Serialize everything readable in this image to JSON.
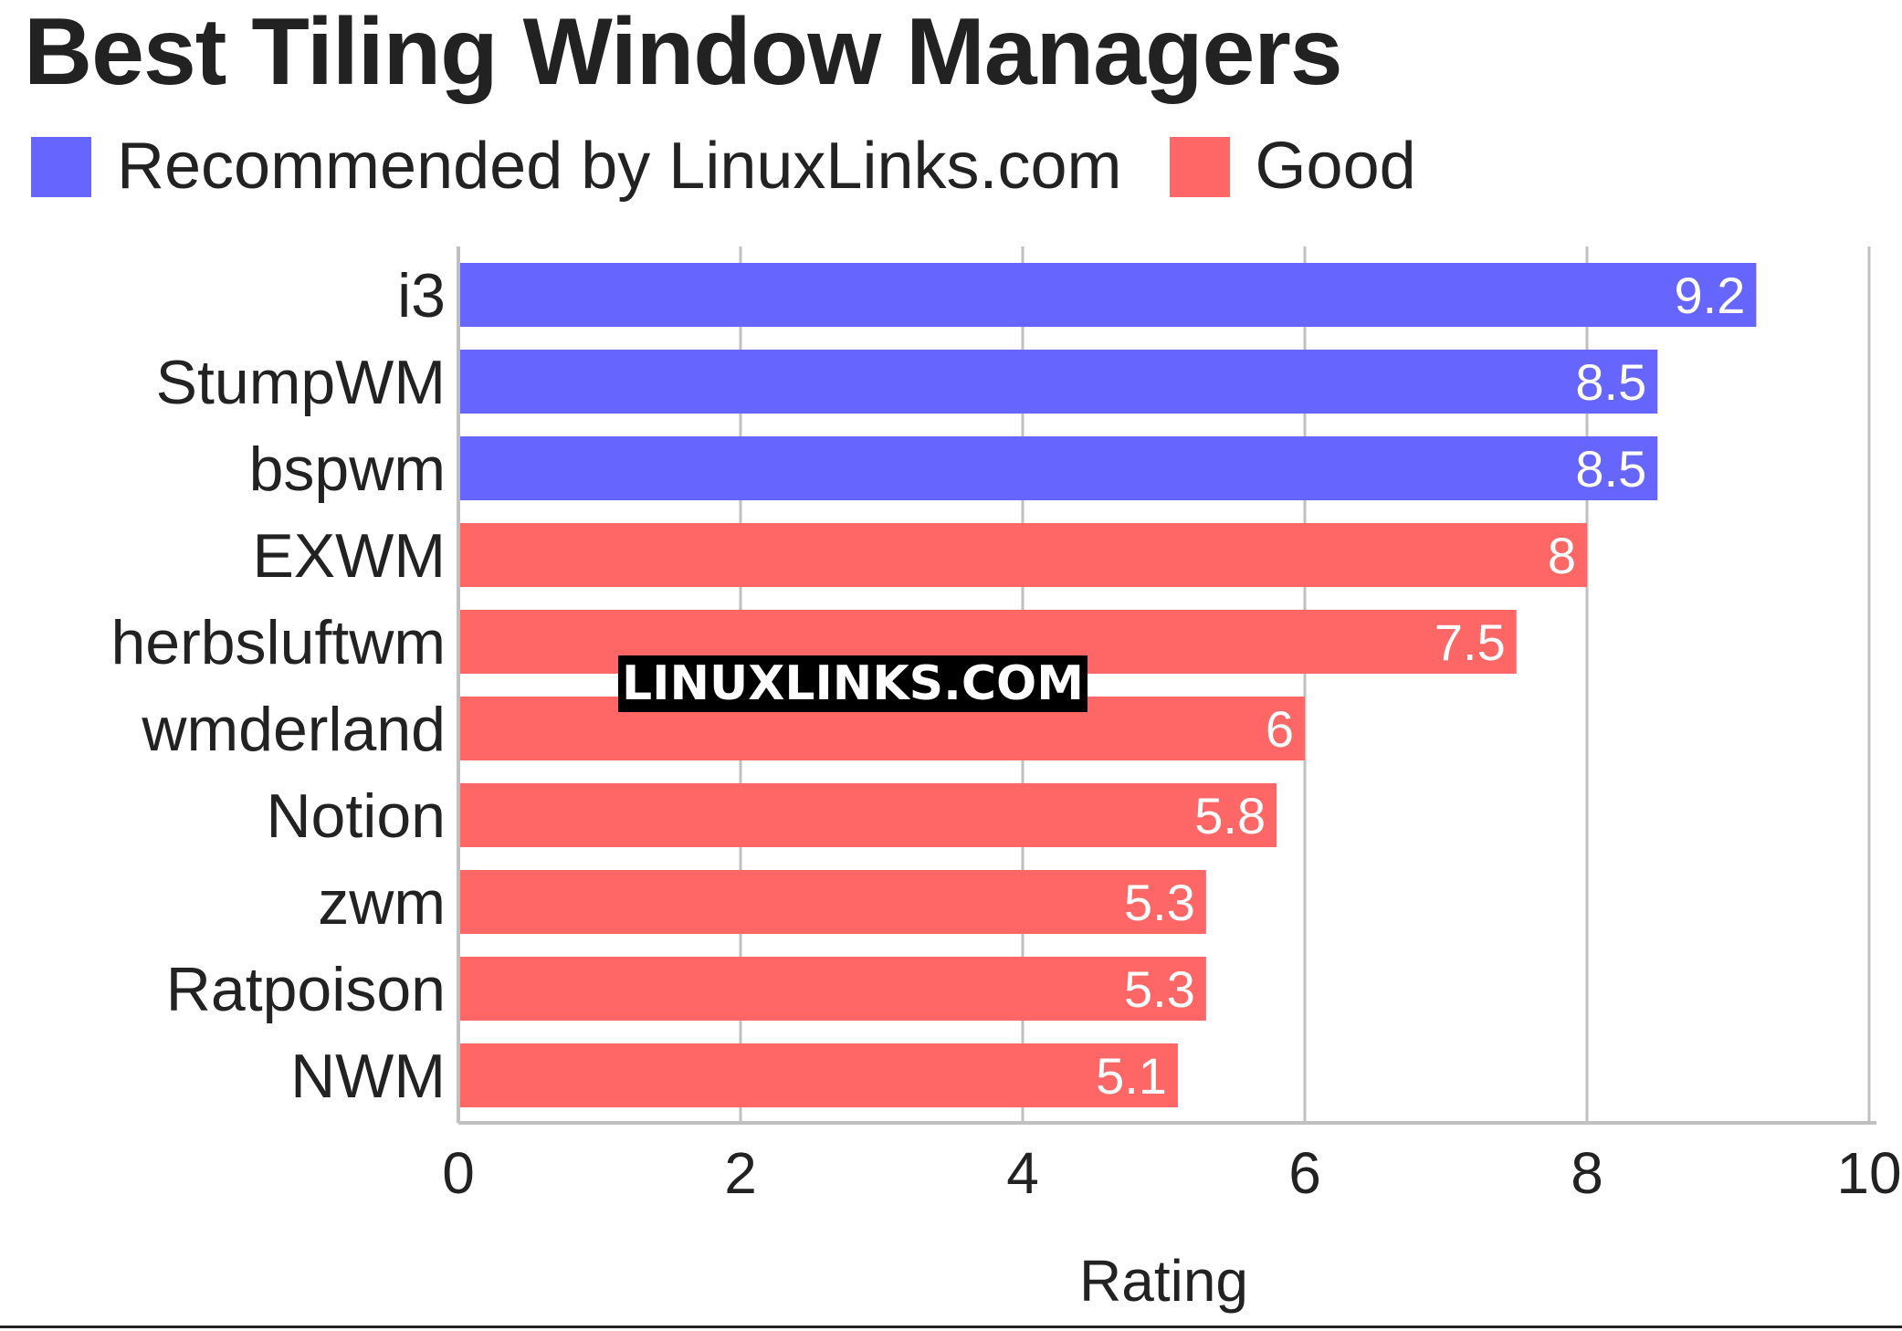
{
  "chart_data": {
    "type": "bar",
    "orientation": "horizontal",
    "title": "Best Tiling Window Managers",
    "xlabel": "Rating",
    "ylabel": "",
    "xlim": [
      0,
      10
    ],
    "ticks": [
      0,
      2,
      4,
      6,
      8,
      10
    ],
    "grid": true,
    "legend_position": "top-left",
    "legend": [
      {
        "label": "Recommended by LinuxLinks.com",
        "color": "#6666ff"
      },
      {
        "label": "Good",
        "color": "#ff6666"
      }
    ],
    "categories": [
      "i3",
      "StumpWM",
      "bspwm",
      "EXWM",
      "herbsluftwm",
      "wmderland",
      "Notion",
      "zwm",
      "Ratpoison",
      "NWM"
    ],
    "values": [
      9.2,
      8.5,
      8.5,
      8,
      7.5,
      6,
      5.8,
      5.3,
      5.3,
      5.1
    ],
    "value_labels": [
      "9.2",
      "8.5",
      "8.5",
      "8",
      "7.5",
      "6",
      "5.8",
      "5.3",
      "5.3",
      "5.1"
    ],
    "groups": [
      "Recommended by LinuxLinks.com",
      "Recommended by LinuxLinks.com",
      "Recommended by LinuxLinks.com",
      "Good",
      "Good",
      "Good",
      "Good",
      "Good",
      "Good",
      "Good"
    ],
    "watermark": "LINUXLINKS.COM"
  }
}
